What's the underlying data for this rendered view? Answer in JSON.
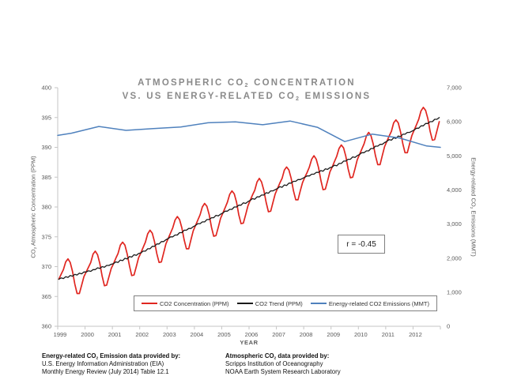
{
  "title": {
    "line1_pre": "ATMOSPHERIC CO",
    "line1_sub": "2",
    "line1_post": " CONCENTRATION",
    "line2_pre": "VS. US ENERGY-RELATED CO",
    "line2_sub": "2",
    "line2_post": " EMISSIONS",
    "color": "#8a8a8a"
  },
  "axes": {
    "left_label_pre": "CO",
    "left_label_sub": "2",
    "left_label_post": " Atmospheric Concentration (PPM)",
    "right_label_pre": "Energy-related CO",
    "right_label_sub": "2",
    "right_label_post": " Emissions (MMT)",
    "x_label": "YEAR",
    "axis_line_color": "#c6c6c6",
    "tick_label_color": "#595959"
  },
  "chart_data": {
    "type": "line",
    "title": "ATMOSPHERIC CO2 CONCENTRATION VS. US ENERGY-RELATED CO2 EMISSIONS",
    "xlabel": "YEAR",
    "ylabel_left": "CO2 Atmospheric Concentration (PPM)",
    "ylabel_right": "Energy-related CO2 Emissions (MMT)",
    "grid": false,
    "legend_position": "bottom",
    "r_annotation": "r = -0.45",
    "xlim": [
      1999,
      2013
    ],
    "x_tick_labels": [
      "1999",
      "2000",
      "2001",
      "2002",
      "2003",
      "2004",
      "2005",
      "2006",
      "2007",
      "2008",
      "2009",
      "2010",
      "2011",
      "2012"
    ],
    "y_left": {
      "range": [
        360,
        400
      ],
      "tick_step": 5,
      "tick_labels": [
        "360",
        "365",
        "370",
        "375",
        "380",
        "385",
        "390",
        "395",
        "400"
      ]
    },
    "y_right": {
      "range": [
        0,
        7000
      ],
      "tick_step": 1000,
      "tick_labels": [
        "0",
        "1,000",
        "2,000",
        "3,000",
        "4,000",
        "5,000",
        "6,000",
        "7,000"
      ]
    },
    "series": [
      {
        "name": "CO2 Concentration (PPM)",
        "color": "#e02620",
        "axis": "left",
        "x_start": 1999,
        "x_step": "monthly",
        "values": [
          367.9,
          368.7,
          369.5,
          370.8,
          371.3,
          370.7,
          369.2,
          367.1,
          365.5,
          365.5,
          366.9,
          368.3,
          369.1,
          369.9,
          370.7,
          372.1,
          372.6,
          372.0,
          370.5,
          368.4,
          366.8,
          366.9,
          368.3,
          369.7,
          370.5,
          371.4,
          372.2,
          373.6,
          374.1,
          373.6,
          372.1,
          370.1,
          368.5,
          368.6,
          370.0,
          371.5,
          372.3,
          373.2,
          374.1,
          375.5,
          376.1,
          375.6,
          374.2,
          372.2,
          370.7,
          370.8,
          372.3,
          373.8,
          374.7,
          375.6,
          376.5,
          377.8,
          378.4,
          377.9,
          376.5,
          374.5,
          373.0,
          373.0,
          374.5,
          376.0,
          376.9,
          377.8,
          378.7,
          380.0,
          380.6,
          380.1,
          378.7,
          376.6,
          375.1,
          375.2,
          376.6,
          378.1,
          379.0,
          379.9,
          380.8,
          382.1,
          382.7,
          382.2,
          380.8,
          378.7,
          377.2,
          377.3,
          378.7,
          380.2,
          381.1,
          382.0,
          382.8,
          384.2,
          384.8,
          384.2,
          382.8,
          380.8,
          379.2,
          379.3,
          380.8,
          382.2,
          383.1,
          384.0,
          384.8,
          386.2,
          386.7,
          386.2,
          384.8,
          382.7,
          381.2,
          381.2,
          382.7,
          384.1,
          385.0,
          385.8,
          386.7,
          388.0,
          388.6,
          388.0,
          386.6,
          384.5,
          382.9,
          383.0,
          384.4,
          385.9,
          386.7,
          387.6,
          388.5,
          389.8,
          390.4,
          389.9,
          388.5,
          386.4,
          384.9,
          385.0,
          386.4,
          387.9,
          388.8,
          389.7,
          390.6,
          391.9,
          392.5,
          392.0,
          390.6,
          388.6,
          387.1,
          387.1,
          388.6,
          390.1,
          391.0,
          391.9,
          392.7,
          394.1,
          394.6,
          394.1,
          392.6,
          390.6,
          389.1,
          389.1,
          390.6,
          392.0,
          392.9,
          393.8,
          394.7,
          396.1,
          396.7,
          396.2,
          394.8,
          392.7,
          391.2,
          391.3,
          392.8,
          394.3
        ]
      },
      {
        "name": "CO2 Trend (PPM)",
        "color": "#1a1a1a",
        "axis": "left",
        "x_start": 1999,
        "x_step": "monthly",
        "values": [
          367.9,
          368.1,
          368.0,
          368.3,
          368.2,
          368.5,
          368.4,
          368.7,
          368.6,
          368.9,
          368.8,
          369.1,
          369.1,
          369.3,
          369.2,
          369.5,
          369.5,
          369.8,
          369.7,
          370.0,
          369.9,
          370.2,
          370.2,
          370.4,
          370.5,
          370.8,
          370.7,
          371.1,
          371.0,
          371.4,
          371.3,
          371.7,
          371.6,
          372.0,
          371.9,
          372.2,
          372.3,
          372.6,
          372.6,
          373.0,
          373.0,
          373.4,
          373.4,
          373.8,
          373.8,
          374.2,
          374.2,
          374.5,
          374.7,
          375.0,
          375.0,
          375.3,
          375.3,
          375.7,
          375.7,
          376.1,
          376.1,
          376.4,
          376.4,
          376.7,
          376.9,
          377.2,
          377.2,
          377.5,
          377.5,
          377.9,
          377.9,
          378.2,
          378.2,
          378.6,
          378.5,
          378.8,
          379.0,
          379.3,
          379.3,
          379.6,
          379.6,
          380.0,
          380.0,
          380.3,
          380.3,
          380.7,
          380.6,
          380.9,
          381.1,
          381.4,
          381.3,
          381.7,
          381.7,
          382.0,
          382.0,
          382.4,
          382.3,
          382.7,
          382.7,
          382.9,
          383.1,
          383.4,
          383.3,
          383.7,
          383.6,
          384.0,
          384.0,
          384.3,
          384.3,
          384.6,
          384.6,
          384.8,
          385.0,
          385.2,
          385.2,
          385.5,
          385.5,
          385.8,
          385.8,
          386.1,
          386.0,
          386.4,
          386.3,
          386.6,
          386.7,
          387.0,
          386.9,
          387.3,
          387.3,
          387.7,
          387.7,
          388.0,
          388.0,
          388.4,
          388.3,
          388.6,
          388.8,
          389.1,
          389.1,
          389.4,
          389.4,
          389.8,
          389.8,
          390.2,
          390.2,
          390.5,
          390.5,
          390.8,
          391.0,
          391.3,
          391.2,
          391.6,
          391.5,
          391.9,
          391.8,
          392.2,
          392.2,
          392.5,
          392.5,
          392.7,
          392.9,
          393.2,
          393.2,
          393.6,
          393.6,
          394.0,
          394.0,
          394.3,
          394.3,
          394.7,
          394.7,
          395.0
        ]
      },
      {
        "name": "Energy-related CO2 Emissions (MMT)",
        "color": "#4f81bd",
        "axis": "right",
        "x": [
          1999.0,
          1999.5,
          2000.5,
          2001.5,
          2002.5,
          2003.5,
          2004.5,
          2005.5,
          2006.5,
          2007.5,
          2008.5,
          2009.5,
          2010.5,
          2011.5,
          2012.5,
          2013.0
        ],
        "values": [
          5600,
          5664,
          5863,
          5748,
          5801,
          5846,
          5970,
          5999,
          5914,
          6023,
          5839,
          5420,
          5636,
          5526,
          5290,
          5250
        ]
      }
    ]
  },
  "footer": {
    "left": {
      "title_pre": "Energy-related CO",
      "title_sub": "2",
      "title_post": " Emission data provided by:",
      "line2": "U.S. Energy Information Administration (EIA)",
      "line3": "Monthly Energy Review (July 2014) Table 12.1"
    },
    "right": {
      "title_pre": "Atmospheric CO",
      "title_sub": "2",
      "title_post": " data provided by:",
      "line2": "Scripps Institution of Oceanography",
      "line3": "NOAA Earth System Research Laboratory"
    }
  }
}
